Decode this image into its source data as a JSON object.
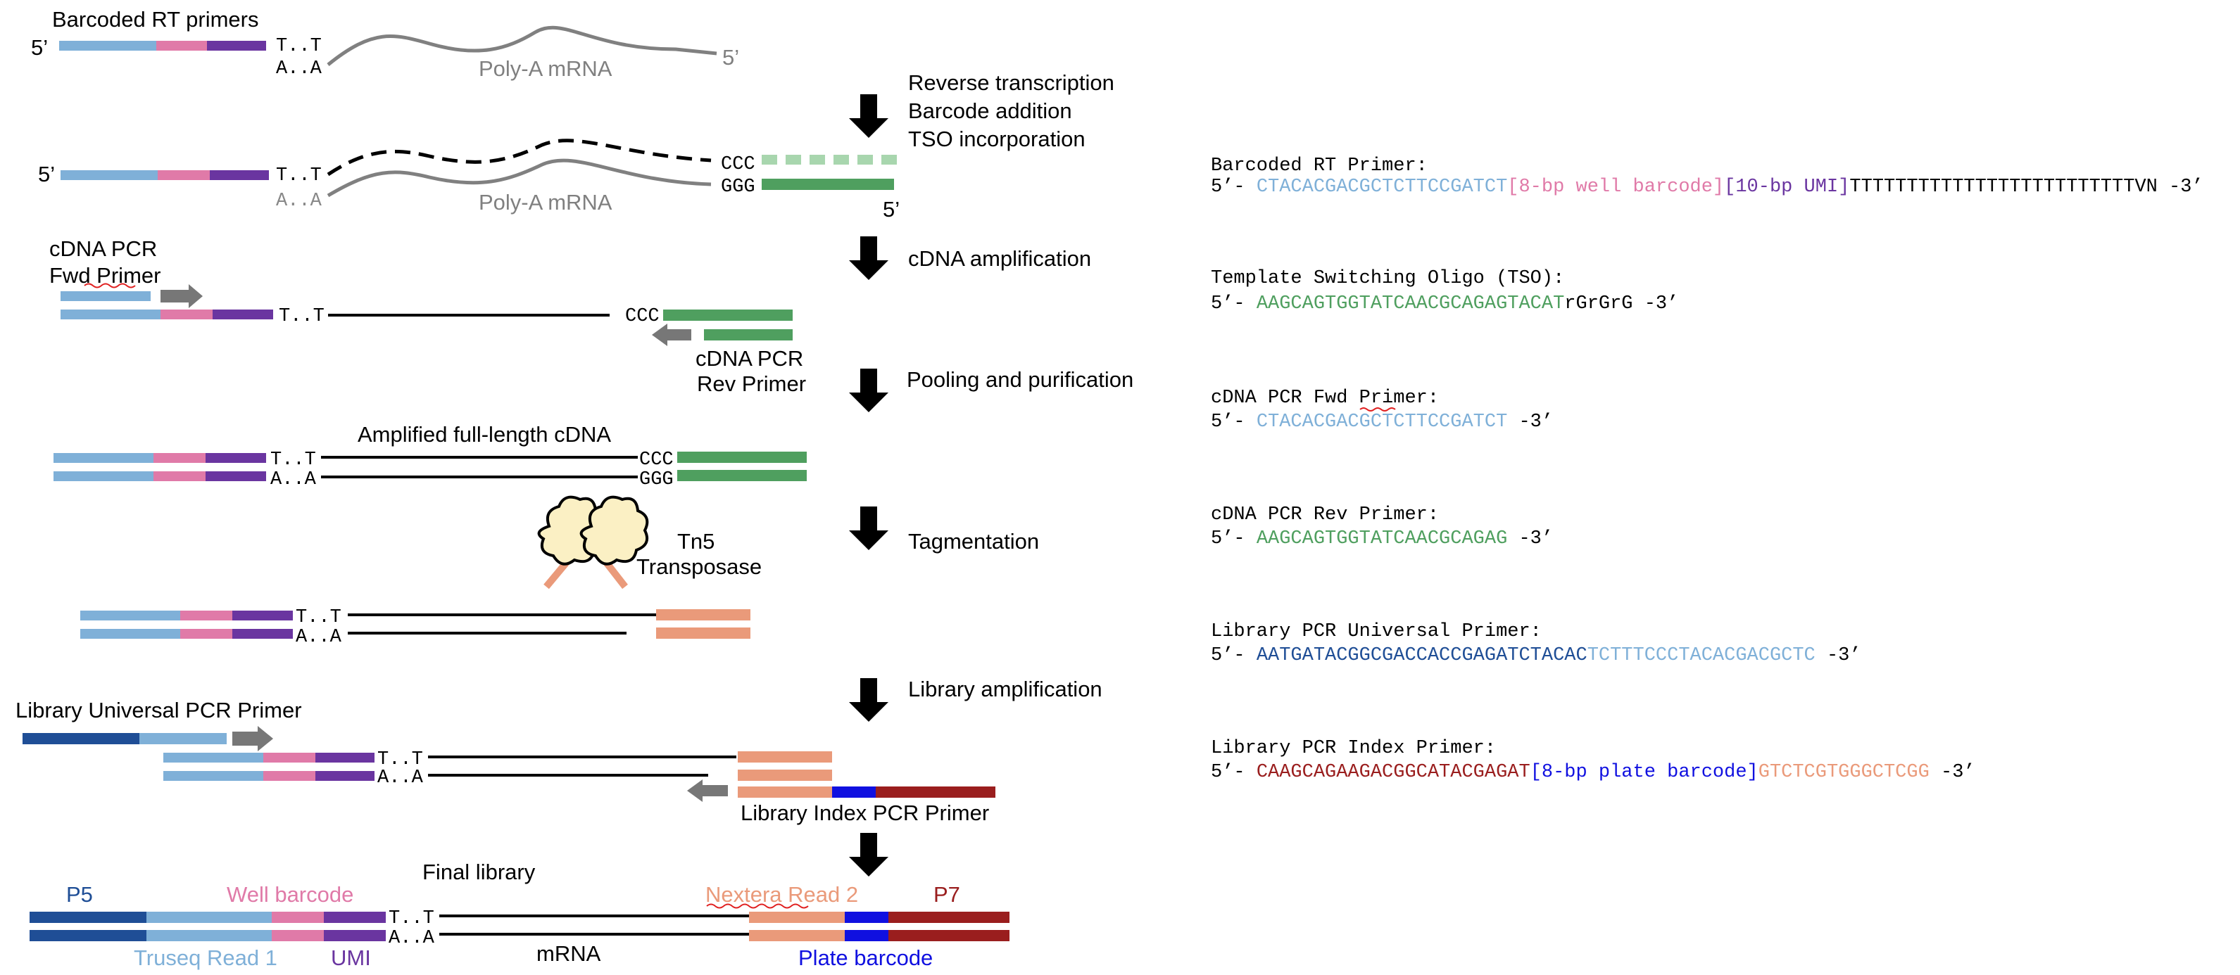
{
  "colors": {
    "light_blue": "#7fb0d8",
    "pink": "#e07aa8",
    "purple": "#6a35a0",
    "green": "#4f9f5f",
    "light_green": "#a8d6ae",
    "salmon": "#ea9a7a",
    "dark_blue": "#1f4e96",
    "blue": "#1010e0",
    "dark_red": "#9a1e1e",
    "gray": "#808080"
  },
  "diagram": {
    "steps": {
      "step1_title": "Barcoded RT primers",
      "five_prime": "5’",
      "tt": "T..T",
      "aa": "A..A",
      "polya": "Poly-A mRNA",
      "ccc": "CCC",
      "ggg": "GGG",
      "cdna_fwd_line1": "cDNA PCR",
      "cdna_fwd_line2": "Fwd Primer",
      "cdna_rev_line1": "cDNA PCR",
      "cdna_rev_line2": "Rev Primer",
      "amplified": "Amplified full-length cDNA",
      "tn5_line1": "Tn5",
      "tn5_line2": "Transposase",
      "lib_universal": "Library Universal PCR Primer",
      "lib_index": "Library Index PCR Primer",
      "final_library": "Final library"
    },
    "arrows": [
      {
        "line1": "Reverse transcription",
        "line2": "Barcode addition",
        "line3": "TSO incorporation"
      },
      {
        "line1": "cDNA amplification"
      },
      {
        "line1": "Pooling and purification"
      },
      {
        "line1": "Tagmentation"
      },
      {
        "line1": "Library amplification"
      }
    ],
    "final_labels": {
      "p5": "P5",
      "well_barcode": "Well barcode",
      "truseq": "Truseq Read 1",
      "umi": "UMI",
      "mrna": "mRNA",
      "nextera": "Nextera Read 2",
      "p7": "P7",
      "plate_barcode": "Plate barcode"
    }
  },
  "sequences": [
    {
      "title": "Barcoded RT Primer:",
      "prefix": "5’- ",
      "parts": [
        {
          "text": "CTACACGACGCTCTTCCGATCT",
          "color": "#7fb0d8"
        },
        {
          "text": "[8-bp well barcode]",
          "color": "#e07aa8"
        },
        {
          "text": "[10-bp UMI]",
          "color": "#6a35a0"
        },
        {
          "text": "TTTTTTTTTTTTTTTTTTTTTTTTTVN",
          "color": "#000000"
        }
      ],
      "suffix": " -3’"
    },
    {
      "title": "Template Switching Oligo (TSO):",
      "prefix": "5’- ",
      "parts": [
        {
          "text": "AAGCAGTGGTATCAACGCAGAGTACAT",
          "color": "#4f9f5f"
        },
        {
          "text": "rGrGrG",
          "color": "#000000"
        }
      ],
      "suffix": " -3’"
    },
    {
      "title": "cDNA PCR Fwd Primer:",
      "prefix": "5’- ",
      "parts": [
        {
          "text": "CTACACGACGCTCTTCCGATCT",
          "color": "#7fb0d8"
        }
      ],
      "suffix": " -3’"
    },
    {
      "title": "cDNA PCR Rev Primer:",
      "prefix": "5’- ",
      "parts": [
        {
          "text": "AAGCAGTGGTATCAACGCAGAG",
          "color": "#4f9f5f"
        }
      ],
      "suffix": " -3’"
    },
    {
      "title": "Library PCR Universal Primer:",
      "prefix": "5’- ",
      "parts": [
        {
          "text": "AATGATACGGCGACCACCGAGATCTACAC",
          "color": "#1f4e96"
        },
        {
          "text": "TCTTTCCCTACACGACGCTC",
          "color": "#7fb0d8"
        }
      ],
      "suffix": " -3’"
    },
    {
      "title": "Library PCR Index Primer:",
      "prefix": "5’- ",
      "parts": [
        {
          "text": "CAAGCAGAAGACGGCATACGAGAT",
          "color": "#9a1e1e"
        },
        {
          "text": "[8-bp plate barcode]",
          "color": "#1010e0"
        },
        {
          "text": "GTCTCGTGGGCTCGG",
          "color": "#ea9a7a"
        }
      ],
      "suffix": " -3’"
    }
  ]
}
